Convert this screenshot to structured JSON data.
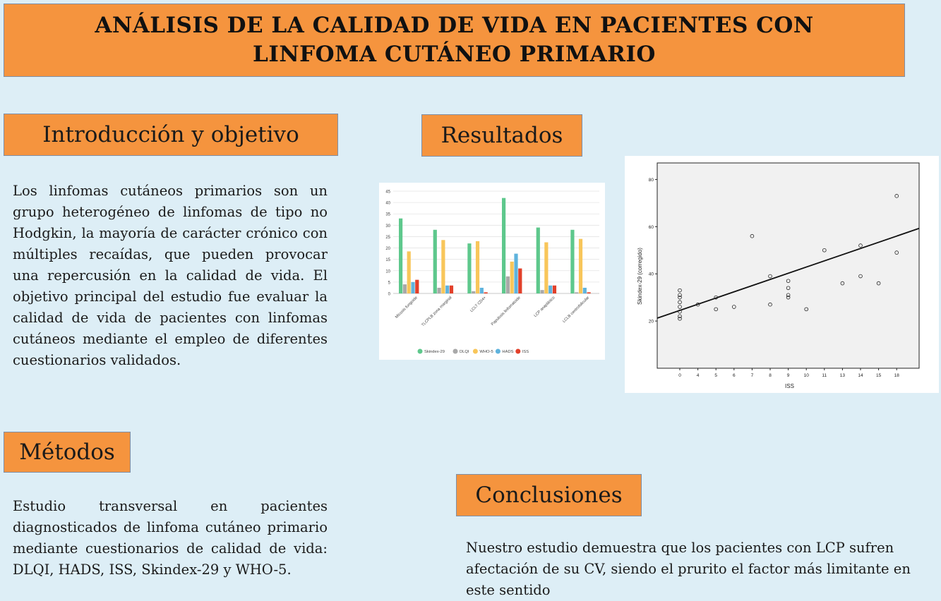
{
  "title": "ANÁLISIS DE LA CALIDAD DE VIDA EN PACIENTES CON LINFOMA CUTÁNEO PRIMARIO",
  "sections": {
    "intro": {
      "heading": "Introducción y objetivo",
      "text": "Los linfomas cutáneos primarios son un grupo heterogéneo de linfomas de tipo no Hodgkin, la mayoría de carácter crónico con múltiples recaídas, que pueden provocar una repercusión en la calidad de vida. El objetivo principal del estudio fue evaluar la calidad de vida de pacientes con linfomas cutáneos mediante el empleo de diferentes cuestionarios validados."
    },
    "methods": {
      "heading": "Métodos",
      "text": "Estudio transversal en pacientes diagnosticados de linfoma cutáneo primario mediante cuestionarios de calidad de vida: DLQI, HADS, ISS, Skindex-29 y WHO-5."
    },
    "results": {
      "heading": "Resultados"
    },
    "conclusions": {
      "heading": "Conclusiones",
      "text": "Nuestro estudio demuestra que los pacientes con LCP sufren afectación de su CV, siendo el prurito el factor más limitante en este sentido"
    }
  },
  "colors": {
    "header_fill": "#f5943e",
    "header_border": "#7d8fa8",
    "background": "#ddeef6",
    "series": [
      "#5ec88c",
      "#a9a9a9",
      "#f8c65a",
      "#5fb3dd",
      "#e2402a"
    ]
  },
  "chart_data": [
    {
      "type": "bar",
      "categories": [
        "Micosis fungoide",
        "TLCPLB zona marginal",
        "LCLT CD4+",
        "Papulosis linfomatoide",
        "LCP anaplásico",
        "LCLB centrofolicular"
      ],
      "series": [
        {
          "name": "Skindex-29",
          "values": [
            33,
            28,
            22,
            42,
            29,
            28
          ]
        },
        {
          "name": "DLQI",
          "values": [
            4,
            2.5,
            1,
            7.5,
            1.5,
            0.5
          ]
        },
        {
          "name": "WHO-5",
          "values": [
            18.5,
            23.5,
            23,
            14,
            22.5,
            24
          ]
        },
        {
          "name": "HADS",
          "values": [
            5,
            3.5,
            2.5,
            17.5,
            3.5,
            2.5
          ]
        },
        {
          "name": "ISS",
          "values": [
            6,
            3.5,
            0.5,
            11,
            3.5,
            0.5
          ]
        }
      ],
      "yticks": [
        "0",
        "5",
        "10",
        "15",
        "20",
        "25",
        "30",
        "35",
        "40",
        "45"
      ],
      "ylim": [
        0,
        45
      ],
      "grid": true,
      "legend": "bottom"
    },
    {
      "type": "scatter",
      "xlabel": "ISS",
      "ylabel": "Skindex-29 (corregido)",
      "xticks": [
        "0",
        "4",
        "5",
        "6",
        "7",
        "8",
        "9",
        "10",
        "11",
        "13",
        "14",
        "15",
        "18"
      ],
      "yticks": [
        "20",
        "40",
        "60",
        "80"
      ],
      "ylim": [
        0,
        87
      ],
      "points": [
        [
          0,
          21
        ],
        [
          0,
          22
        ],
        [
          0,
          24
        ],
        [
          0,
          26
        ],
        [
          0,
          28
        ],
        [
          0,
          30
        ],
        [
          0,
          31
        ],
        [
          0,
          33
        ],
        [
          4,
          27
        ],
        [
          5,
          25
        ],
        [
          5,
          30
        ],
        [
          6,
          26
        ],
        [
          7,
          56
        ],
        [
          8,
          27
        ],
        [
          8,
          39
        ],
        [
          9,
          30
        ],
        [
          9,
          31
        ],
        [
          9,
          34
        ],
        [
          9,
          37
        ],
        [
          10,
          25
        ],
        [
          11,
          50
        ],
        [
          13,
          36
        ],
        [
          14,
          39
        ],
        [
          14,
          52
        ],
        [
          15,
          36
        ],
        [
          18,
          49
        ],
        [
          18,
          73
        ]
      ],
      "trendline": {
        "start": [
          0,
          24.5
        ],
        "end": [
          18,
          56
        ]
      },
      "grid": false
    }
  ]
}
